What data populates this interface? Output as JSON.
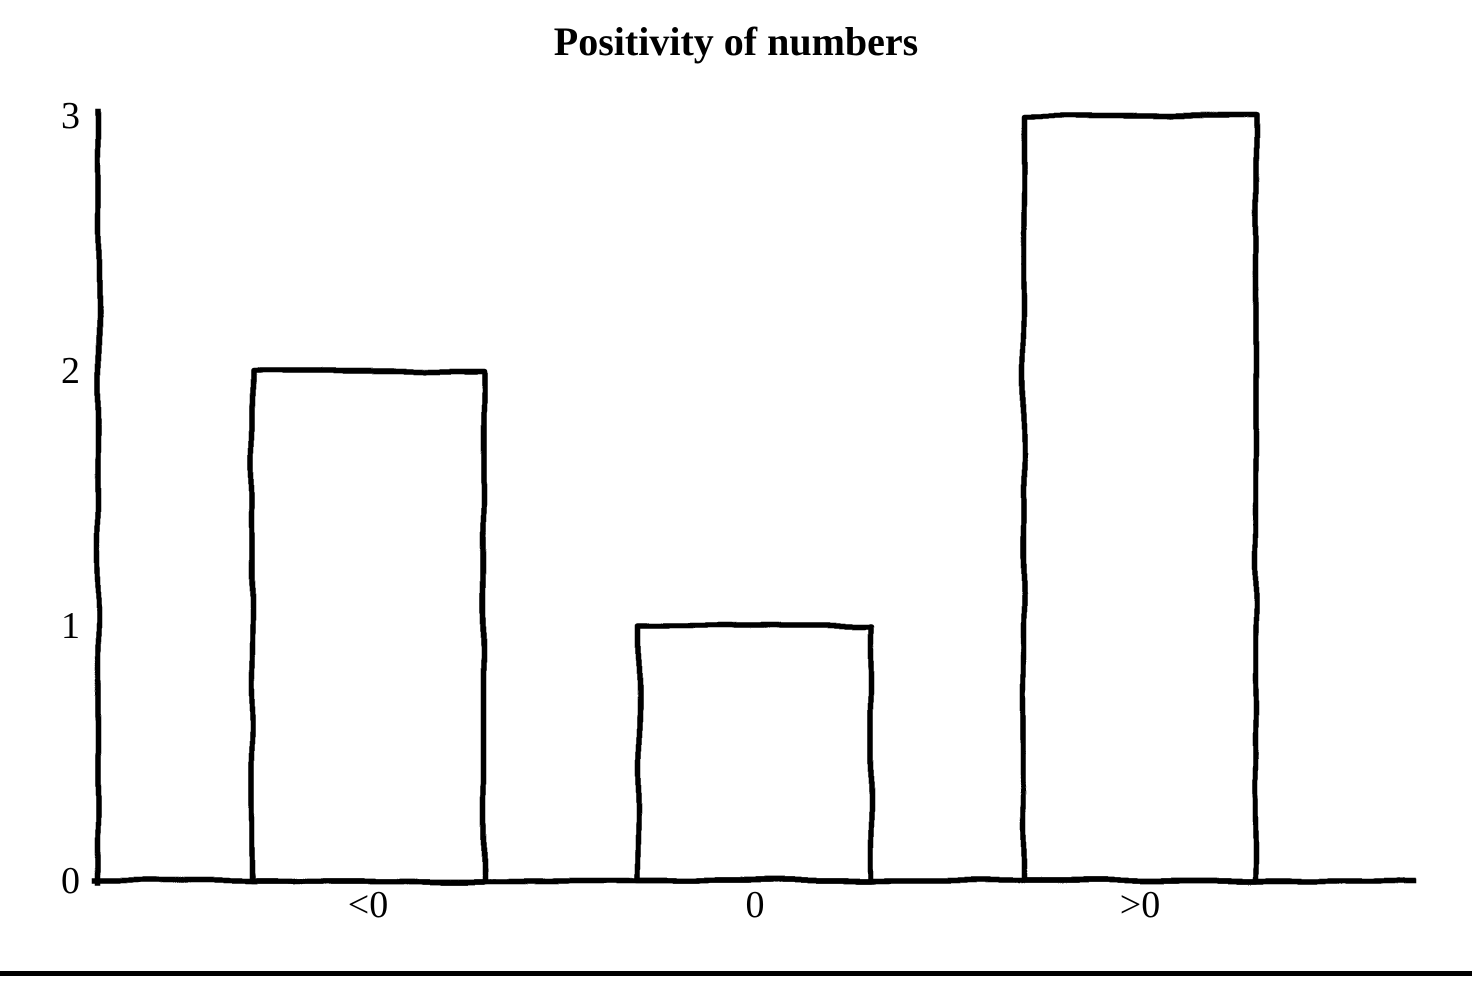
{
  "window": {
    "background": "#ffffff",
    "ink": "#000000"
  },
  "chart_data": {
    "type": "bar",
    "title": "Positivity of numbers",
    "categories": [
      "<0",
      "0",
      ">0"
    ],
    "values": [
      2,
      1,
      3
    ],
    "xlabel": "",
    "ylabel": "",
    "ylim": [
      0,
      3
    ],
    "yticks": [
      0,
      1,
      2,
      3
    ],
    "grid": false,
    "legend": "none",
    "style": "hand-drawn-outline",
    "bar_fill": "#ffffff",
    "bar_stroke": "#000000",
    "axis_color": "#000000"
  },
  "footer": {
    "rule_color": "#000000"
  }
}
